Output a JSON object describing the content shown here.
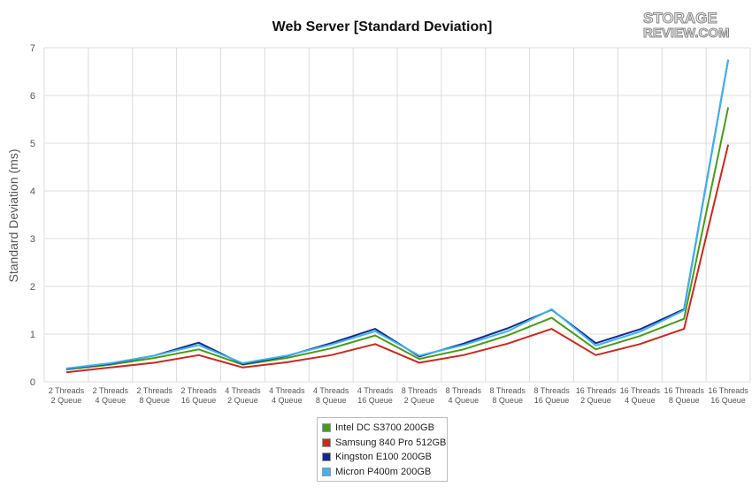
{
  "logo": {
    "line1": "STORAGE",
    "line2": "REVIEW.COM"
  },
  "chart_data": {
    "type": "line",
    "title": "Web Server [Standard Deviation]",
    "xlabel": "",
    "ylabel": "Standard Deviation (ms)",
    "ylim": [
      0,
      7
    ],
    "yticks": [
      "0",
      "1",
      "2",
      "3",
      "4",
      "5",
      "6",
      "7"
    ],
    "grid": true,
    "legend_position": "bottom",
    "categories": [
      [
        "2 Threads",
        "2 Queue"
      ],
      [
        "2 Threads",
        "4 Queue"
      ],
      [
        "2 Threads",
        "8 Queue"
      ],
      [
        "2 Threads",
        "16 Queue"
      ],
      [
        "4 Threads",
        "2 Queue"
      ],
      [
        "4 Threads",
        "4 Queue"
      ],
      [
        "4 Threads",
        "8 Queue"
      ],
      [
        "4 Threads",
        "16 Queue"
      ],
      [
        "8 Threads",
        "2 Queue"
      ],
      [
        "8 Threads",
        "4 Queue"
      ],
      [
        "8 Threads",
        "8 Queue"
      ],
      [
        "8 Threads",
        "16 Queue"
      ],
      [
        "16 Threads",
        "2 Queue"
      ],
      [
        "16 Threads",
        "4 Queue"
      ],
      [
        "16 Threads",
        "8 Queue"
      ],
      [
        "16 Threads",
        "16 Queue"
      ]
    ],
    "series": [
      {
        "name": "Intel DC S3700 200GB",
        "color": "#4a9a1a",
        "values": [
          0.26,
          0.36,
          0.5,
          0.68,
          0.36,
          0.5,
          0.7,
          0.97,
          0.48,
          0.68,
          0.97,
          1.34,
          0.68,
          0.96,
          1.32,
          5.75
        ]
      },
      {
        "name": "Samsung 840 Pro 512GB",
        "color": "#c8291f",
        "values": [
          0.2,
          0.3,
          0.4,
          0.56,
          0.3,
          0.41,
          0.56,
          0.79,
          0.4,
          0.56,
          0.8,
          1.11,
          0.56,
          0.79,
          1.11,
          4.97
        ]
      },
      {
        "name": "Kingston E100 200GB",
        "color": "#142a8a",
        "values": [
          0.27,
          0.38,
          0.55,
          0.82,
          0.37,
          0.54,
          0.81,
          1.11,
          0.53,
          0.8,
          1.12,
          1.51,
          0.81,
          1.1,
          1.52,
          6.75
        ]
      },
      {
        "name": "Micron P400m 200GB",
        "color": "#3fb3ec",
        "values": [
          0.28,
          0.39,
          0.55,
          0.77,
          0.39,
          0.55,
          0.78,
          1.06,
          0.55,
          0.77,
          1.06,
          1.52,
          0.76,
          1.05,
          1.5,
          6.75
        ]
      }
    ]
  }
}
